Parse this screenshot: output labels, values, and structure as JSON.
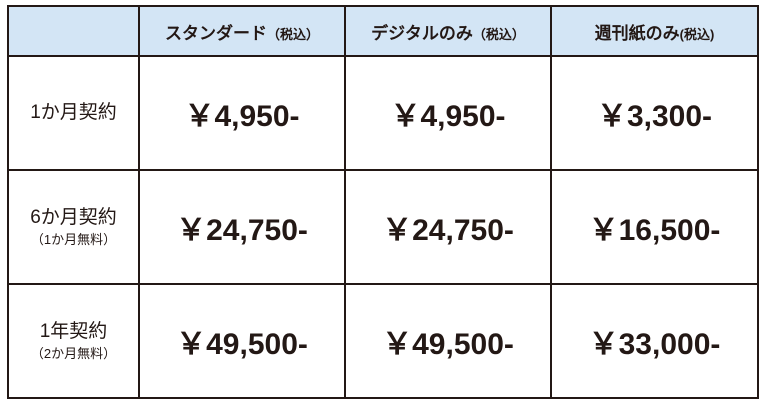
{
  "header": {
    "corner": "",
    "columns": [
      {
        "name": "スタンダード",
        "tax": "（税込）"
      },
      {
        "name": "デジタルのみ",
        "tax": "（税込）"
      },
      {
        "name": "週刊紙のみ",
        "tax": "(税込)"
      }
    ]
  },
  "rows": [
    {
      "label": "1か月契約",
      "note": "",
      "prices": [
        "￥4,950-",
        "￥4,950-",
        "￥3,300-"
      ]
    },
    {
      "label": "6か月契約",
      "note": "（1か月無料）",
      "prices": [
        "￥24,750-",
        "￥24,750-",
        "￥16,500-"
      ]
    },
    {
      "label": "1年契約",
      "note": "（2か月無料）",
      "prices": [
        "￥49,500-",
        "￥49,500-",
        "￥33,000-"
      ]
    }
  ],
  "colors": {
    "header_bg": "#d3e5f5",
    "text": "#231815",
    "border": "#231815"
  }
}
